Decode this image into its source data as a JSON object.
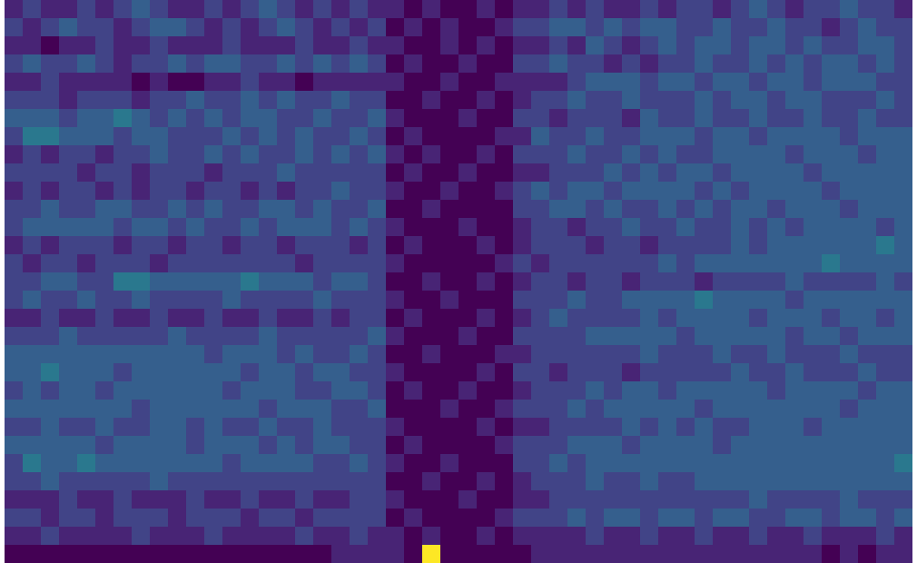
{
  "chart_data": {
    "type": "heatmap",
    "tick_labels": false,
    "color": "viridis",
    "zlim": [
      0,
      10
    ],
    "cells": [
      [
        1,
        2,
        1,
        1,
        2,
        1,
        2,
        3,
        2,
        1,
        1,
        2,
        1,
        2,
        3,
        2,
        1,
        2,
        1,
        2,
        1,
        1,
        0,
        1,
        0,
        0,
        1,
        0,
        1,
        1,
        2,
        1,
        2,
        1,
        1,
        2,
        1,
        2,
        2,
        1,
        2,
        3,
        2,
        1,
        2,
        2,
        3,
        2,
        2,
        1
      ],
      [
        2,
        1,
        2,
        3,
        2,
        2,
        1,
        2,
        3,
        3,
        2,
        1,
        2,
        1,
        2,
        3,
        2,
        1,
        2,
        1,
        2,
        0,
        1,
        0,
        1,
        0,
        0,
        1,
        2,
        2,
        3,
        3,
        2,
        3,
        2,
        3,
        3,
        2,
        2,
        3,
        2,
        2,
        3,
        2,
        2,
        1,
        2,
        3,
        2,
        2
      ],
      [
        1,
        1,
        0,
        1,
        1,
        2,
        1,
        1,
        2,
        1,
        1,
        1,
        2,
        1,
        1,
        1,
        2,
        1,
        1,
        2,
        1,
        1,
        0,
        0,
        1,
        0,
        1,
        0,
        1,
        1,
        2,
        1,
        3,
        2,
        1,
        2,
        3,
        2,
        3,
        3,
        2,
        3,
        3,
        2,
        3,
        2,
        2,
        3,
        3,
        2
      ],
      [
        2,
        3,
        2,
        2,
        3,
        2,
        1,
        2,
        2,
        3,
        2,
        3,
        3,
        2,
        2,
        3,
        2,
        3,
        2,
        3,
        2,
        0,
        1,
        0,
        0,
        1,
        0,
        0,
        2,
        2,
        3,
        2,
        2,
        1,
        2,
        1,
        2,
        2,
        3,
        2,
        2,
        3,
        2,
        3,
        2,
        3,
        3,
        2,
        3,
        2
      ],
      [
        1,
        1,
        2,
        1,
        1,
        1,
        1,
        0,
        1,
        0,
        0,
        1,
        1,
        2,
        1,
        1,
        0,
        1,
        1,
        1,
        1,
        1,
        0,
        0,
        1,
        0,
        0,
        1,
        1,
        1,
        1,
        2,
        3,
        3,
        3,
        2,
        3,
        3,
        2,
        3,
        3,
        2,
        3,
        3,
        2,
        3,
        3,
        3,
        2,
        2
      ],
      [
        2,
        2,
        2,
        1,
        2,
        2,
        2,
        1,
        2,
        2,
        3,
        2,
        2,
        3,
        2,
        3,
        2,
        2,
        3,
        2,
        2,
        0,
        0,
        1,
        0,
        0,
        1,
        0,
        1,
        2,
        2,
        3,
        2,
        2,
        3,
        2,
        2,
        2,
        3,
        2,
        3,
        3,
        2,
        3,
        3,
        2,
        2,
        2,
        3,
        2
      ],
      [
        3,
        3,
        3,
        2,
        3,
        3,
        4,
        3,
        2,
        3,
        2,
        3,
        2,
        3,
        3,
        2,
        2,
        3,
        2,
        2,
        3,
        1,
        0,
        0,
        0,
        1,
        0,
        0,
        2,
        2,
        1,
        2,
        2,
        2,
        1,
        3,
        2,
        2,
        3,
        2,
        2,
        3,
        2,
        2,
        3,
        2,
        2,
        3,
        2,
        2
      ],
      [
        2,
        4,
        4,
        3,
        3,
        3,
        2,
        3,
        3,
        2,
        2,
        2,
        3,
        2,
        3,
        2,
        3,
        2,
        2,
        3,
        2,
        0,
        1,
        0,
        0,
        0,
        0,
        1,
        1,
        3,
        2,
        2,
        3,
        2,
        2,
        3,
        3,
        3,
        2,
        3,
        3,
        2,
        3,
        3,
        3,
        3,
        2,
        3,
        3,
        3
      ],
      [
        1,
        2,
        1,
        2,
        2,
        1,
        2,
        2,
        3,
        2,
        2,
        3,
        2,
        3,
        2,
        2,
        3,
        2,
        3,
        2,
        3,
        1,
        0,
        1,
        0,
        0,
        1,
        0,
        2,
        2,
        2,
        3,
        2,
        2,
        3,
        2,
        3,
        2,
        2,
        3,
        3,
        3,
        3,
        2,
        3,
        3,
        3,
        2,
        3,
        3
      ],
      [
        2,
        2,
        2,
        2,
        1,
        2,
        2,
        1,
        2,
        2,
        2,
        1,
        2,
        2,
        2,
        3,
        2,
        2,
        2,
        2,
        2,
        0,
        1,
        0,
        0,
        1,
        0,
        0,
        1,
        1,
        2,
        2,
        2,
        3,
        2,
        3,
        2,
        3,
        3,
        2,
        3,
        3,
        3,
        3,
        2,
        3,
        3,
        3,
        3,
        3
      ],
      [
        1,
        2,
        1,
        2,
        2,
        1,
        2,
        1,
        2,
        2,
        1,
        2,
        2,
        1,
        2,
        1,
        2,
        2,
        3,
        2,
        2,
        1,
        0,
        0,
        1,
        0,
        0,
        1,
        2,
        3,
        2,
        3,
        3,
        2,
        3,
        3,
        3,
        3,
        2,
        3,
        2,
        3,
        3,
        3,
        3,
        2,
        3,
        3,
        3,
        3
      ],
      [
        2,
        2,
        3,
        2,
        2,
        3,
        3,
        2,
        2,
        3,
        2,
        3,
        2,
        2,
        3,
        3,
        2,
        3,
        2,
        2,
        3,
        0,
        0,
        1,
        0,
        0,
        0,
        0,
        2,
        2,
        3,
        3,
        2,
        3,
        2,
        2,
        3,
        2,
        3,
        2,
        3,
        3,
        2,
        3,
        3,
        3,
        2,
        3,
        3,
        3
      ],
      [
        2,
        3,
        3,
        3,
        3,
        3,
        2,
        3,
        3,
        2,
        3,
        2,
        2,
        3,
        2,
        3,
        3,
        3,
        2,
        3,
        2,
        1,
        0,
        0,
        0,
        1,
        0,
        0,
        1,
        2,
        2,
        1,
        2,
        2,
        3,
        2,
        2,
        3,
        2,
        2,
        3,
        2,
        3,
        2,
        3,
        3,
        3,
        3,
        2,
        3
      ],
      [
        1,
        2,
        1,
        2,
        2,
        2,
        1,
        2,
        2,
        1,
        2,
        2,
        1,
        2,
        2,
        1,
        2,
        2,
        2,
        1,
        2,
        0,
        1,
        0,
        0,
        0,
        1,
        0,
        1,
        2,
        2,
        2,
        1,
        2,
        2,
        1,
        2,
        2,
        2,
        2,
        3,
        2,
        3,
        3,
        3,
        3,
        3,
        3,
        4,
        3
      ],
      [
        2,
        1,
        2,
        2,
        1,
        2,
        2,
        2,
        1,
        2,
        2,
        2,
        2,
        2,
        2,
        2,
        1,
        2,
        2,
        2,
        2,
        1,
        0,
        0,
        0,
        0,
        0,
        1,
        2,
        1,
        2,
        2,
        2,
        2,
        2,
        2,
        3,
        2,
        3,
        3,
        3,
        3,
        3,
        3,
        3,
        4,
        3,
        3,
        3,
        3
      ],
      [
        2,
        2,
        3,
        3,
        2,
        2,
        4,
        4,
        3,
        3,
        3,
        3,
        3,
        4,
        3,
        3,
        3,
        2,
        3,
        3,
        2,
        0,
        0,
        1,
        0,
        0,
        1,
        0,
        1,
        2,
        2,
        1,
        2,
        2,
        1,
        2,
        2,
        2,
        1,
        2,
        2,
        2,
        2,
        3,
        2,
        2,
        2,
        2,
        3,
        2
      ],
      [
        2,
        3,
        2,
        2,
        3,
        2,
        2,
        3,
        2,
        2,
        2,
        2,
        3,
        2,
        2,
        2,
        2,
        3,
        2,
        2,
        2,
        1,
        0,
        0,
        1,
        0,
        0,
        0,
        2,
        2,
        2,
        3,
        2,
        2,
        3,
        3,
        3,
        3,
        4,
        3,
        3,
        3,
        3,
        2,
        3,
        3,
        3,
        3,
        3,
        3
      ],
      [
        1,
        1,
        2,
        1,
        1,
        2,
        1,
        1,
        2,
        1,
        1,
        2,
        1,
        1,
        2,
        1,
        1,
        2,
        1,
        2,
        2,
        0,
        1,
        0,
        0,
        0,
        1,
        0,
        1,
        2,
        3,
        2,
        2,
        2,
        2,
        3,
        2,
        3,
        3,
        3,
        3,
        2,
        3,
        3,
        3,
        2,
        3,
        3,
        2,
        3
      ],
      [
        2,
        2,
        2,
        3,
        2,
        2,
        2,
        2,
        2,
        3,
        2,
        2,
        2,
        2,
        3,
        2,
        2,
        2,
        2,
        2,
        3,
        1,
        0,
        0,
        0,
        1,
        0,
        0,
        2,
        2,
        2,
        2,
        3,
        3,
        3,
        3,
        3,
        2,
        3,
        3,
        3,
        3,
        3,
        2,
        3,
        3,
        2,
        3,
        3,
        3
      ],
      [
        3,
        3,
        3,
        3,
        3,
        3,
        3,
        3,
        3,
        3,
        3,
        2,
        3,
        3,
        3,
        2,
        3,
        2,
        2,
        3,
        2,
        0,
        0,
        1,
        0,
        0,
        0,
        1,
        1,
        2,
        2,
        2,
        2,
        2,
        2,
        3,
        2,
        2,
        2,
        3,
        2,
        2,
        3,
        2,
        2,
        2,
        3,
        2,
        2,
        2
      ],
      [
        3,
        3,
        4,
        3,
        3,
        3,
        2,
        3,
        3,
        3,
        3,
        3,
        3,
        2,
        3,
        3,
        2,
        3,
        3,
        2,
        2,
        1,
        0,
        0,
        0,
        0,
        1,
        0,
        2,
        2,
        1,
        2,
        2,
        2,
        1,
        2,
        2,
        2,
        2,
        2,
        3,
        2,
        2,
        3,
        2,
        2,
        2,
        3,
        2,
        2
      ],
      [
        2,
        3,
        2,
        3,
        3,
        2,
        3,
        3,
        3,
        3,
        3,
        3,
        2,
        3,
        3,
        3,
        2,
        2,
        3,
        3,
        2,
        0,
        1,
        0,
        0,
        1,
        0,
        0,
        1,
        2,
        2,
        2,
        3,
        2,
        3,
        3,
        2,
        3,
        3,
        3,
        3,
        3,
        2,
        3,
        3,
        3,
        3,
        2,
        3,
        3
      ],
      [
        3,
        3,
        3,
        3,
        3,
        3,
        3,
        2,
        3,
        3,
        3,
        3,
        3,
        3,
        2,
        3,
        3,
        3,
        2,
        2,
        3,
        0,
        0,
        0,
        1,
        0,
        0,
        1,
        2,
        2,
        2,
        3,
        2,
        3,
        3,
        3,
        3,
        3,
        2,
        3,
        3,
        3,
        3,
        3,
        3,
        3,
        2,
        3,
        3,
        3
      ],
      [
        2,
        2,
        3,
        2,
        2,
        3,
        2,
        2,
        3,
        3,
        2,
        3,
        2,
        2,
        3,
        2,
        2,
        3,
        2,
        2,
        2,
        1,
        0,
        0,
        0,
        0,
        1,
        0,
        1,
        1,
        2,
        2,
        2,
        2,
        3,
        2,
        3,
        2,
        3,
        2,
        2,
        3,
        3,
        3,
        2,
        3,
        3,
        3,
        3,
        3
      ],
      [
        3,
        3,
        3,
        3,
        3,
        2,
        3,
        3,
        3,
        3,
        2,
        3,
        3,
        3,
        2,
        3,
        2,
        3,
        3,
        2,
        2,
        0,
        1,
        0,
        0,
        0,
        0,
        1,
        2,
        2,
        2,
        3,
        3,
        3,
        2,
        3,
        3,
        3,
        3,
        2,
        3,
        3,
        3,
        3,
        3,
        3,
        3,
        3,
        3,
        3
      ],
      [
        2,
        4,
        3,
        3,
        4,
        3,
        3,
        3,
        3,
        3,
        3,
        3,
        2,
        3,
        3,
        3,
        3,
        2,
        2,
        3,
        2,
        1,
        0,
        0,
        1,
        0,
        0,
        0,
        2,
        2,
        3,
        2,
        3,
        3,
        3,
        3,
        3,
        3,
        3,
        3,
        3,
        3,
        3,
        3,
        3,
        3,
        3,
        3,
        3,
        4
      ],
      [
        2,
        2,
        3,
        2,
        2,
        2,
        2,
        2,
        3,
        2,
        2,
        2,
        2,
        2,
        2,
        2,
        2,
        2,
        2,
        2,
        2,
        0,
        0,
        1,
        0,
        0,
        1,
        0,
        1,
        2,
        2,
        2,
        3,
        2,
        2,
        3,
        2,
        2,
        3,
        3,
        3,
        3,
        3,
        3,
        3,
        3,
        3,
        3,
        3,
        3
      ],
      [
        1,
        1,
        1,
        2,
        1,
        1,
        2,
        1,
        1,
        1,
        2,
        1,
        1,
        2,
        1,
        1,
        2,
        1,
        1,
        2,
        2,
        1,
        0,
        0,
        0,
        1,
        0,
        0,
        1,
        1,
        2,
        2,
        2,
        2,
        2,
        2,
        2,
        2,
        2,
        2,
        2,
        3,
        2,
        2,
        2,
        2,
        3,
        2,
        2,
        2
      ],
      [
        2,
        2,
        1,
        2,
        2,
        1,
        2,
        2,
        2,
        1,
        2,
        2,
        2,
        1,
        2,
        2,
        1,
        2,
        2,
        2,
        2,
        0,
        1,
        0,
        0,
        0,
        0,
        1,
        2,
        2,
        2,
        3,
        2,
        3,
        3,
        2,
        3,
        3,
        2,
        3,
        3,
        2,
        2,
        3,
        3,
        2,
        3,
        3,
        2,
        3
      ],
      [
        1,
        1,
        2,
        1,
        1,
        1,
        1,
        2,
        1,
        1,
        1,
        2,
        1,
        1,
        1,
        1,
        2,
        1,
        1,
        2,
        1,
        1,
        0,
        1,
        0,
        0,
        1,
        0,
        1,
        1,
        1,
        1,
        2,
        1,
        1,
        2,
        1,
        1,
        2,
        1,
        1,
        2,
        1,
        1,
        2,
        1,
        1,
        1,
        2,
        1
      ],
      [
        0,
        0,
        0,
        0,
        0,
        0,
        0,
        0,
        0,
        0,
        0,
        0,
        0,
        0,
        0,
        0,
        0,
        0,
        1,
        1,
        1,
        1,
        0,
        10,
        0,
        0,
        0,
        0,
        0,
        1,
        1,
        1,
        1,
        1,
        1,
        1,
        1,
        1,
        1,
        1,
        1,
        1,
        1,
        1,
        1,
        0,
        1,
        0,
        1,
        1
      ]
    ]
  }
}
